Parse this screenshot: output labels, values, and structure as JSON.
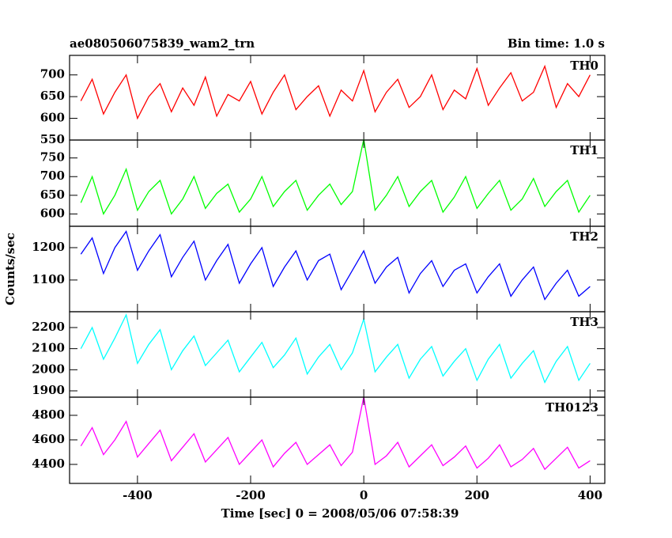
{
  "chart_data": {
    "type": "line",
    "title": "ae080506075839_wam2_trn",
    "subtitle": "Bin time: 1.0 s",
    "xlabel": "Time [sec] 0 = 2008/05/06 07:58:39",
    "ylabel": "Counts/sec",
    "xlim": [
      -520,
      426
    ],
    "xticks": [
      -400,
      -200,
      0,
      200,
      400
    ],
    "x": [
      -500,
      -480,
      -460,
      -440,
      -420,
      -400,
      -380,
      -360,
      -340,
      -320,
      -300,
      -280,
      -260,
      -240,
      -220,
      -200,
      -180,
      -160,
      -140,
      -120,
      -100,
      -80,
      -60,
      -40,
      -20,
      0,
      20,
      40,
      60,
      80,
      100,
      120,
      140,
      160,
      180,
      200,
      220,
      240,
      260,
      280,
      300,
      320,
      340,
      360,
      380,
      400
    ],
    "panels": [
      {
        "name": "TH0",
        "color": "#ff0000",
        "ylim": [
          550,
          745
        ],
        "yticks": [
          550,
          600,
          650,
          700
        ],
        "values": [
          640,
          690,
          610,
          660,
          700,
          600,
          650,
          680,
          615,
          670,
          630,
          695,
          605,
          655,
          640,
          685,
          610,
          660,
          700,
          620,
          650,
          675,
          605,
          665,
          640,
          710,
          615,
          660,
          690,
          625,
          650,
          700,
          620,
          665,
          645,
          715,
          630,
          670,
          705,
          640,
          660,
          720,
          625,
          680,
          650,
          700
        ]
      },
      {
        "name": "TH1",
        "color": "#00ff00",
        "ylim": [
          567,
          798
        ],
        "yticks": [
          600,
          650,
          700,
          750
        ],
        "values": [
          630,
          700,
          600,
          650,
          720,
          610,
          660,
          690,
          600,
          640,
          700,
          615,
          655,
          680,
          605,
          640,
          700,
          620,
          660,
          690,
          610,
          650,
          680,
          625,
          660,
          800,
          610,
          650,
          700,
          620,
          660,
          690,
          605,
          645,
          700,
          615,
          655,
          690,
          610,
          640,
          695,
          620,
          660,
          690,
          605,
          650
        ]
      },
      {
        "name": "TH2",
        "color": "#0000ff",
        "ylim": [
          1002,
          1266
        ],
        "yticks": [
          1100,
          1200
        ],
        "values": [
          1180,
          1230,
          1120,
          1200,
          1250,
          1130,
          1190,
          1240,
          1110,
          1170,
          1220,
          1100,
          1160,
          1210,
          1090,
          1150,
          1200,
          1080,
          1140,
          1190,
          1100,
          1160,
          1180,
          1070,
          1130,
          1190,
          1090,
          1140,
          1170,
          1060,
          1120,
          1160,
          1080,
          1130,
          1150,
          1060,
          1110,
          1150,
          1050,
          1100,
          1140,
          1040,
          1090,
          1130,
          1050,
          1080
        ]
      },
      {
        "name": "TH3",
        "color": "#00ffff",
        "ylim": [
          1870,
          2275
        ],
        "yticks": [
          1900,
          2000,
          2100,
          2200
        ],
        "values": [
          2100,
          2200,
          2050,
          2150,
          2260,
          2030,
          2120,
          2190,
          2000,
          2090,
          2160,
          2020,
          2080,
          2140,
          1990,
          2060,
          2130,
          2010,
          2070,
          2150,
          1980,
          2060,
          2120,
          2000,
          2080,
          2240,
          1990,
          2060,
          2120,
          1960,
          2050,
          2110,
          1970,
          2040,
          2100,
          1950,
          2050,
          2120,
          1960,
          2030,
          2090,
          1940,
          2040,
          2110,
          1950,
          2030
        ]
      },
      {
        "name": "TH0123",
        "color": "#ff00ff",
        "ylim": [
          4245,
          4948
        ],
        "yticks": [
          4400,
          4600,
          4800
        ],
        "values": [
          4550,
          4700,
          4480,
          4600,
          4750,
          4460,
          4570,
          4680,
          4430,
          4540,
          4650,
          4420,
          4520,
          4620,
          4400,
          4500,
          4600,
          4380,
          4490,
          4580,
          4400,
          4480,
          4560,
          4390,
          4500,
          4950,
          4400,
          4470,
          4580,
          4380,
          4470,
          4560,
          4390,
          4460,
          4550,
          4370,
          4450,
          4560,
          4380,
          4440,
          4530,
          4360,
          4450,
          4540,
          4370,
          4430
        ]
      }
    ]
  }
}
